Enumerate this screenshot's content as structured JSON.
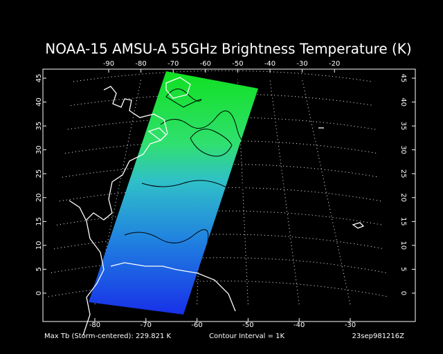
{
  "title": "NOAA-15 AMSU-A 55GHz Brightness Temperature (K)",
  "top_ticks": [
    -90,
    -80,
    -70,
    -60,
    -50,
    -40,
    -30,
    -20
  ],
  "bottom_ticks": [
    -80,
    -70,
    -60,
    -50,
    -40,
    -30
  ],
  "lat_ticks": [
    0,
    5,
    10,
    15,
    20,
    25,
    30,
    35,
    40,
    45
  ],
  "footer": {
    "max_tb": "Max Tb (Storm-centered):  229.821 K",
    "contour": "Contour Interval = 1K",
    "time": "23sep981216Z"
  }
}
